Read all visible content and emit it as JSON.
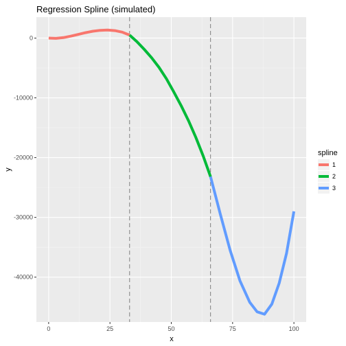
{
  "chart_data": {
    "type": "line",
    "title": "Regression Spline (simulated)",
    "xlabel": "x",
    "ylabel": "y",
    "xlim": [
      0,
      100
    ],
    "ylim": [
      -47500,
      3500
    ],
    "x_ticks": [
      0,
      25,
      50,
      75,
      100
    ],
    "y_ticks": [
      0,
      -10000,
      -20000,
      -30000,
      -40000
    ],
    "grid": true,
    "legend": {
      "title": "spline",
      "position": "right"
    },
    "knots": [
      33,
      66
    ],
    "series": [
      {
        "name": "1",
        "color": "#F8766D",
        "x": [
          0,
          3,
          6,
          9,
          12,
          15,
          18,
          21,
          24,
          27,
          30,
          33
        ],
        "y": [
          0,
          -50,
          80,
          320,
          600,
          900,
          1150,
          1300,
          1350,
          1250,
          1000,
          500
        ]
      },
      {
        "name": "2",
        "color": "#00BA38",
        "x": [
          33,
          36,
          39,
          42,
          45,
          48,
          51,
          54,
          57,
          60,
          63,
          66
        ],
        "y": [
          500,
          -600,
          -1900,
          -3300,
          -4900,
          -6800,
          -9000,
          -11300,
          -13800,
          -16600,
          -19700,
          -23200
        ]
      },
      {
        "name": "3",
        "color": "#619CFF",
        "x": [
          66,
          70,
          74,
          78,
          82,
          85,
          88,
          91,
          94,
          97,
          100
        ],
        "y": [
          -23200,
          -29500,
          -35500,
          -40600,
          -44200,
          -45800,
          -46200,
          -44500,
          -41000,
          -36000,
          -29000
        ]
      }
    ]
  }
}
